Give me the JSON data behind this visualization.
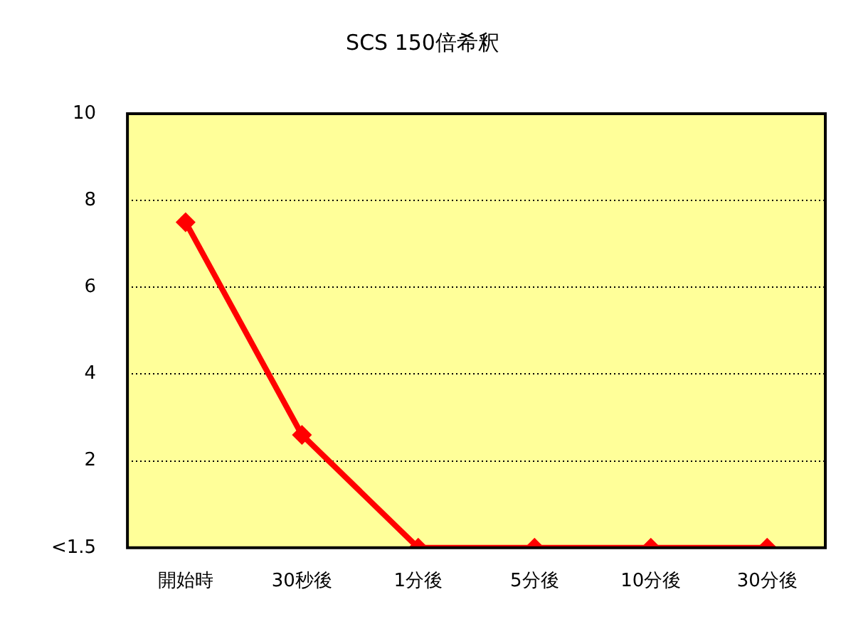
{
  "chart_data": {
    "type": "line",
    "title": "SCS 150倍希釈",
    "categories": [
      "開始時",
      "30秒後",
      "1分後",
      "5分後",
      "10分後",
      "30分後"
    ],
    "series": [
      {
        "color": "#ff0000",
        "values": [
          7.5,
          2.6,
          0,
          0,
          0,
          0
        ]
      }
    ],
    "ylim": [
      0,
      10
    ],
    "yticks": [
      {
        "value": 0,
        "label": "<1.5"
      },
      2,
      4,
      6,
      8,
      10
    ],
    "grid": "y",
    "legend": false,
    "marker": "diamond",
    "line_style": "solid"
  }
}
